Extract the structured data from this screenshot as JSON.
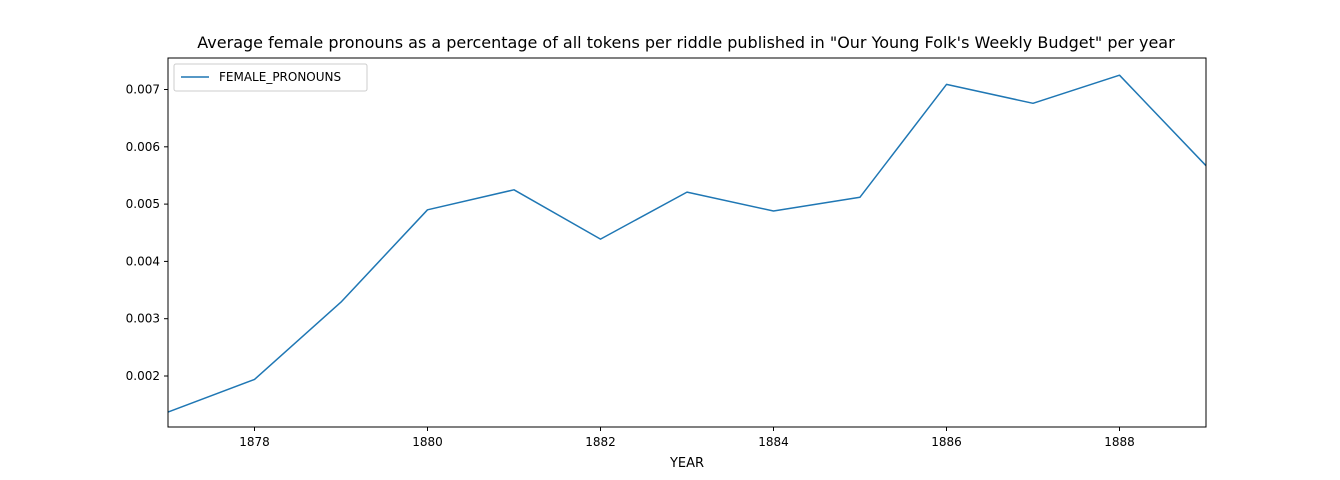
{
  "chart_data": {
    "type": "line",
    "title": "Average female pronouns as a percentage of all tokens per riddle published in \"Our Young Folk's Weekly Budget\" per year",
    "xlabel": "YEAR",
    "ylabel": "",
    "xlim": [
      1877,
      1889
    ],
    "ylim": [
      0.00111,
      0.00755
    ],
    "x_ticks": [
      1878,
      1880,
      1882,
      1884,
      1886,
      1888
    ],
    "y_ticks": [
      0.002,
      0.003,
      0.004,
      0.005,
      0.006,
      0.007
    ],
    "y_tick_labels": [
      "0.002",
      "0.003",
      "0.004",
      "0.005",
      "0.006",
      "0.007"
    ],
    "grid": false,
    "legend": "top-left",
    "series": [
      {
        "name": "FEMALE_PRONOUNS",
        "color": "#1f77b4",
        "x": [
          1877,
          1878,
          1879,
          1880,
          1881,
          1882,
          1883,
          1884,
          1885,
          1886,
          1887,
          1888,
          1889
        ],
        "values": [
          0.00137,
          0.00194,
          0.00329,
          0.0049,
          0.00525,
          0.00439,
          0.00521,
          0.00488,
          0.00512,
          0.00709,
          0.00676,
          0.00725,
          0.00567
        ]
      }
    ]
  }
}
